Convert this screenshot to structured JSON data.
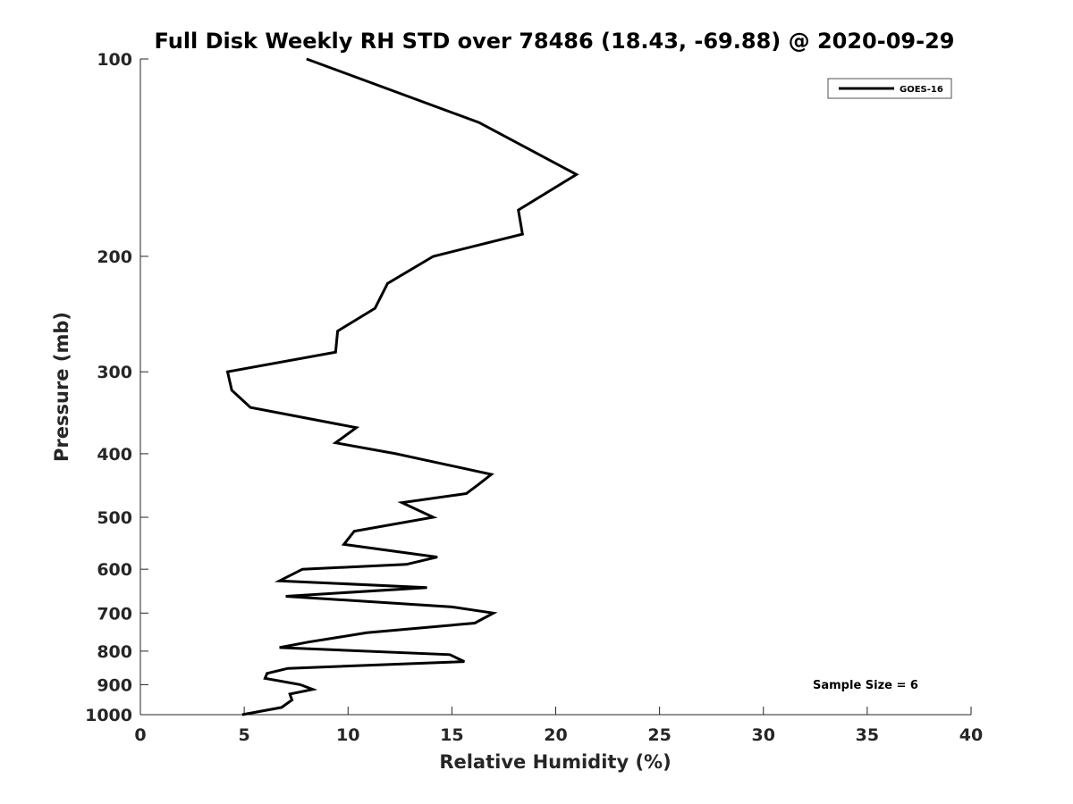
{
  "chart_data": {
    "type": "line",
    "title": "Full Disk Weekly RH STD over 78486 (18.43, -69.88) @ 2020-09-29",
    "xlabel": "Relative Humidity (%)",
    "ylabel": "Pressure (mb)",
    "xlim": [
      0,
      40
    ],
    "ylim": [
      100,
      1000
    ],
    "y_scale": "log",
    "y_reversed": true,
    "x_ticks": [
      0,
      5,
      10,
      15,
      20,
      25,
      30,
      35,
      40
    ],
    "y_ticks": [
      100,
      200,
      300,
      400,
      500,
      600,
      700,
      800,
      900,
      1000
    ],
    "grid": false,
    "legend_position": "top-right",
    "annotation": "Sample Size = 6",
    "series": [
      {
        "name": "GOES-16",
        "color": "#000000",
        "points": [
          [
            8.0,
            100
          ],
          [
            16.3,
            125
          ],
          [
            21.0,
            150
          ],
          [
            18.2,
            170
          ],
          [
            18.4,
            185
          ],
          [
            14.1,
            200
          ],
          [
            11.9,
            220
          ],
          [
            11.3,
            240
          ],
          [
            9.5,
            260
          ],
          [
            9.4,
            280
          ],
          [
            4.2,
            300
          ],
          [
            4.4,
            320
          ],
          [
            5.3,
            340
          ],
          [
            10.4,
            365
          ],
          [
            9.4,
            385
          ],
          [
            12.3,
            400
          ],
          [
            16.9,
            430
          ],
          [
            16.3,
            445
          ],
          [
            15.7,
            460
          ],
          [
            12.6,
            475
          ],
          [
            14.1,
            500
          ],
          [
            10.3,
            525
          ],
          [
            9.8,
            550
          ],
          [
            14.3,
            575
          ],
          [
            12.8,
            590
          ],
          [
            7.8,
            600
          ],
          [
            6.7,
            625
          ],
          [
            13.8,
            640
          ],
          [
            7.0,
            660
          ],
          [
            15.0,
            685
          ],
          [
            17.0,
            700
          ],
          [
            16.1,
            725
          ],
          [
            10.9,
            750
          ],
          [
            8.1,
            775
          ],
          [
            6.7,
            790
          ],
          [
            14.9,
            810
          ],
          [
            15.6,
            830
          ],
          [
            7.1,
            850
          ],
          [
            6.1,
            865
          ],
          [
            6.0,
            880
          ],
          [
            7.7,
            900
          ],
          [
            8.3,
            915
          ],
          [
            7.2,
            930
          ],
          [
            7.3,
            950
          ],
          [
            6.8,
            975
          ],
          [
            4.9,
            1000
          ]
        ]
      }
    ]
  }
}
